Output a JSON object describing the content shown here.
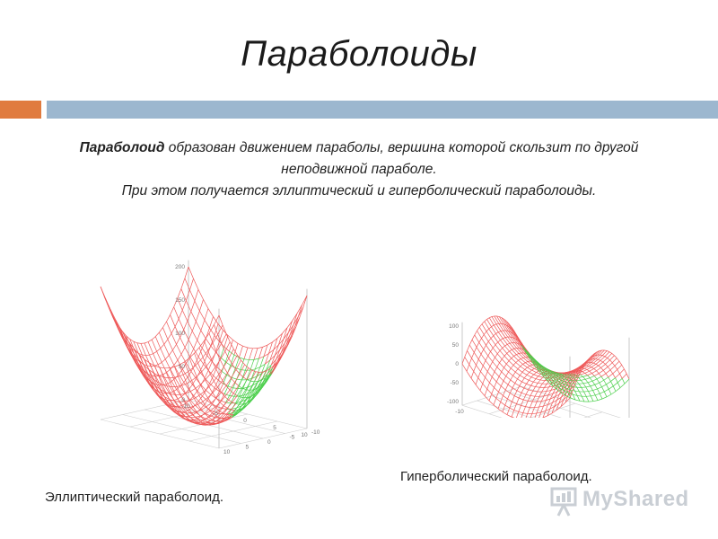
{
  "title": "Параболоиды",
  "description": {
    "term": "Параболоид",
    "line1_rest": " образован движением параболы, вершина которой скользит по другой",
    "line2": "неподвижной параболе.",
    "line3": "При этом получается эллиптический и гиперболический параболоиды."
  },
  "captions": {
    "elliptic": "Эллиптический параболоид.",
    "hyperbolic": "Гиперболический параболоид."
  },
  "watermark": {
    "text": "MyShared"
  },
  "plots": {
    "elliptic": {
      "z_ticks": [
        "200",
        "150",
        "100",
        "50",
        "0"
      ],
      "x_ticks": [
        "-10",
        "-5",
        "0",
        "5",
        "10"
      ],
      "y_ticks": [
        "-10",
        "-5",
        "0",
        "5",
        "10"
      ]
    },
    "hyperbolic": {
      "z_ticks": [
        "100",
        "50",
        "0",
        "-50",
        "-100"
      ],
      "x_ticks": [
        "-10",
        "-5",
        "0",
        "5",
        "10"
      ],
      "y_ticks": [
        "-10",
        "-5",
        "0",
        "5",
        "10"
      ]
    }
  },
  "colors": {
    "mesh_upper": "#ee5a5a",
    "mesh_lower": "#4ccf4c",
    "accent_orange": "#e07b3f",
    "accent_blue": "#9cb7cf"
  }
}
